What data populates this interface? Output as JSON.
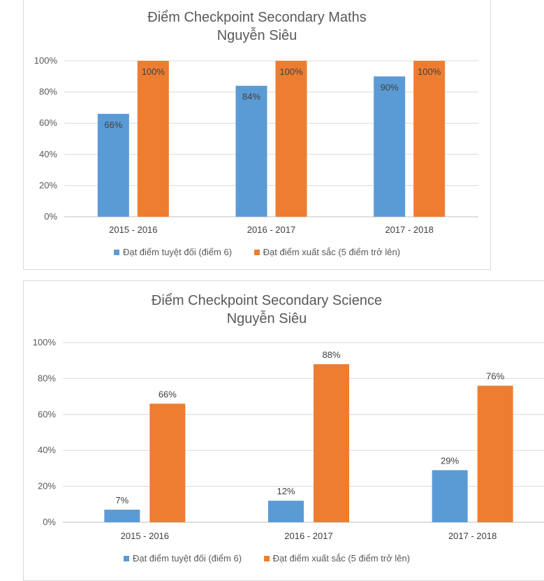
{
  "chart_data": [
    {
      "type": "bar",
      "title": [
        "Điểm Checkpoint Secondary Maths",
        "Nguyễn Siêu"
      ],
      "categories": [
        "2015 - 2016",
        "2016 - 2017",
        "2017 - 2018"
      ],
      "series": [
        {
          "name": "Đạt điểm tuyệt đối (điểm 6)",
          "values": [
            66,
            84,
            90
          ],
          "color": "#5b9bd5"
        },
        {
          "name": "Đạt điểm xuất sắc (5 điểm trở lên)",
          "values": [
            100,
            100,
            100
          ],
          "color": "#ed7d31"
        }
      ],
      "value_labels": [
        [
          "66%",
          "84%",
          "90%"
        ],
        [
          "100%",
          "100%",
          "100%"
        ]
      ],
      "yticks": [
        "0%",
        "20%",
        "40%",
        "60%",
        "80%",
        "100%"
      ],
      "ylim": [
        0,
        100
      ],
      "grid": true,
      "data_label_position": "inside-end",
      "legend": "bottom"
    },
    {
      "type": "bar",
      "title": [
        "Điểm Checkpoint Secondary Science",
        "Nguyễn Siêu"
      ],
      "categories": [
        "2015 - 2016",
        "2016 - 2017",
        "2017 - 2018"
      ],
      "series": [
        {
          "name": "Đạt điểm tuyệt đối (điểm 6)",
          "values": [
            7,
            12,
            29
          ],
          "color": "#5b9bd5"
        },
        {
          "name": "Đạt điểm xuất sắc (5 điểm trở lên)",
          "values": [
            66,
            88,
            76
          ],
          "color": "#ed7d31"
        }
      ],
      "value_labels": [
        [
          "7%",
          "12%",
          "29%"
        ],
        [
          "66%",
          "88%",
          "76%"
        ]
      ],
      "yticks": [
        "0%",
        "20%",
        "40%",
        "60%",
        "80%",
        "100%"
      ],
      "ylim": [
        0,
        100
      ],
      "grid": true,
      "data_label_position": "outside-end",
      "legend": "bottom"
    }
  ]
}
